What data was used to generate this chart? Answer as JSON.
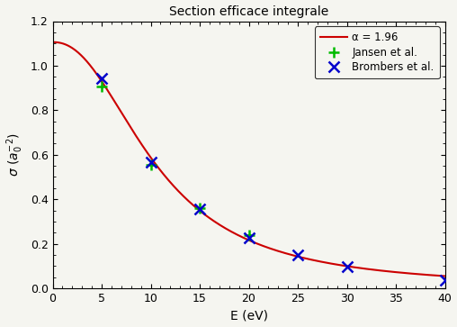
{
  "title": "Section efficace integrale",
  "xlabel": "E (eV)",
  "xlim": [
    0,
    40
  ],
  "ylim": [
    0,
    1.2
  ],
  "xticks": [
    0,
    5,
    10,
    15,
    20,
    25,
    30,
    35,
    40
  ],
  "yticks": [
    0,
    0.2,
    0.4,
    0.6,
    0.8,
    1.0,
    1.2
  ],
  "alpha_param": 1.96,
  "curve_A": 1.1,
  "curve_E0": 5.5,
  "curve_n": 2.8,
  "curve_color": "#cc0000",
  "jansen_color": "#00bb00",
  "brombers_color": "#0000cc",
  "jansen_points": [
    [
      5,
      0.905
    ],
    [
      10,
      0.555
    ],
    [
      15,
      0.362
    ],
    [
      20,
      0.237
    ]
  ],
  "brombers_points": [
    [
      5,
      0.945
    ],
    [
      10,
      0.565
    ],
    [
      15,
      0.358
    ],
    [
      20,
      0.228
    ],
    [
      25,
      0.148
    ],
    [
      30,
      0.098
    ],
    [
      40,
      0.038
    ]
  ],
  "legend_alpha": "α = 1.96",
  "legend_jansen": "Jansen et al.",
  "legend_brombers": "Brombers et al.",
  "background_color": "#f5f5f0",
  "font_family": "DejaVu Sans"
}
